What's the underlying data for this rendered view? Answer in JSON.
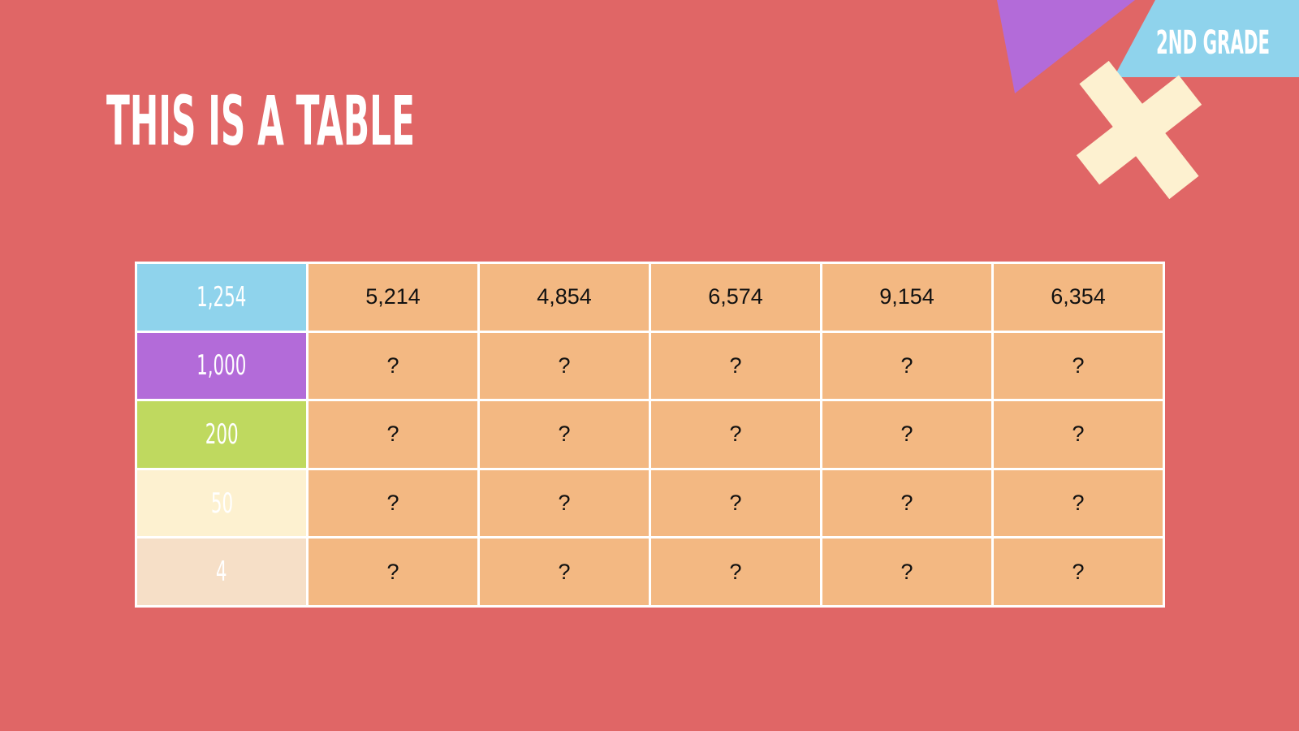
{
  "header": {
    "title": "THIS IS A TABLE",
    "badge": "2ND GRADE"
  },
  "table": {
    "rows": [
      [
        "1,254",
        "5,214",
        "4,854",
        "6,574",
        "9,154",
        "6,354"
      ],
      [
        "1,000",
        "?",
        "?",
        "?",
        "?",
        "?"
      ],
      [
        "200",
        "?",
        "?",
        "?",
        "?",
        "?"
      ],
      [
        "50",
        "?",
        "?",
        "?",
        "?",
        "?"
      ],
      [
        "4",
        "?",
        "?",
        "?",
        "?",
        "?"
      ]
    ]
  }
}
